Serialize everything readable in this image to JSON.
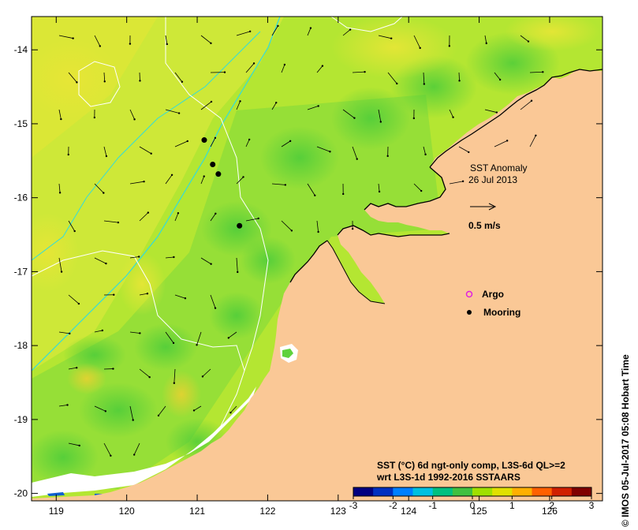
{
  "map": {
    "x_ticks": [
      "119",
      "120",
      "121",
      "122",
      "123",
      "124",
      "125",
      "126"
    ],
    "y_ticks": [
      "-14",
      "-15",
      "-16",
      "-17",
      "-18",
      "-19",
      "-20"
    ],
    "lon_range": [
      118.65,
      126.75
    ],
    "lat_range": [
      -20.1,
      -13.55
    ]
  },
  "title_block": {
    "line1": "SST Anomaly",
    "line2": "26 Jul 2013",
    "scale_label": "0.5 m/s"
  },
  "legend": {
    "argo_label": "Argo",
    "mooring_label": "Mooring",
    "argo_color": "#e020e0",
    "mooring_color": "#000000"
  },
  "moorings": [
    {
      "lon": 121.1,
      "lat": -15.22
    },
    {
      "lon": 121.22,
      "lat": -15.55
    },
    {
      "lon": 121.3,
      "lat": -15.68
    },
    {
      "lon": 121.6,
      "lat": -16.38
    }
  ],
  "colorbar": {
    "caption1": "SST (°C) 6d ngt-only comp, L3S-6d QL>=2",
    "caption2": "wrt L3S-1d 1992-2016 SSTAARS",
    "ticks": [
      "-3",
      "-2",
      "-1",
      "0",
      "1",
      "2",
      "3"
    ],
    "colors": [
      "#000080",
      "#0030c0",
      "#0080ff",
      "#00c0e0",
      "#00c080",
      "#40c040",
      "#a0e000",
      "#e0e000",
      "#ffb000",
      "#ff6000",
      "#d02000",
      "#800000"
    ]
  },
  "credit": "© IMOS 05-Jul-2017 05:08 Hobart Time",
  "colors": {
    "land": "#fac896",
    "sea_base": "#b4e632",
    "sea_green": "#5fd23c",
    "sea_yellow": "#e6e632",
    "no_data": "#ffffff",
    "contour_white": "#ffffff",
    "contour_cyan": "#32dcdc"
  }
}
